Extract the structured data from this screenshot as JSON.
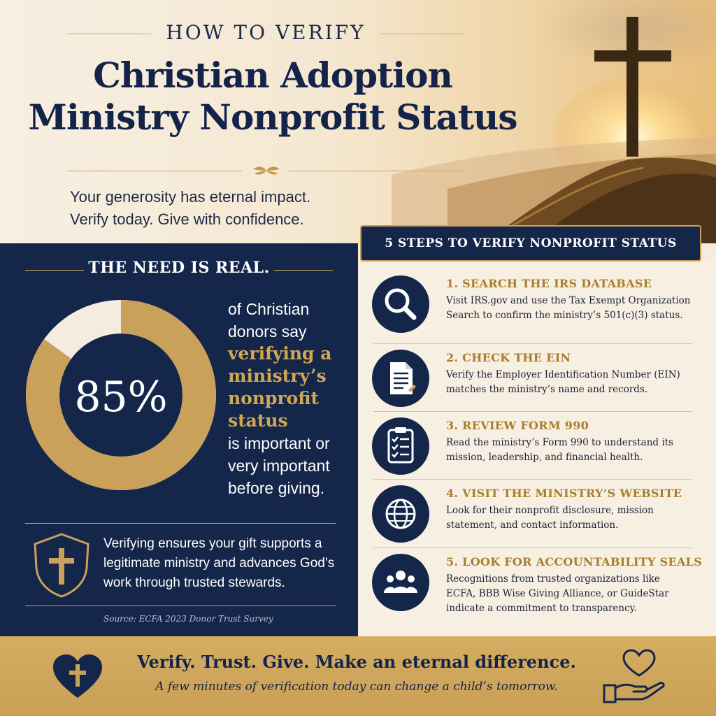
{
  "header": {
    "kicker": "HOW TO VERIFY",
    "title_line1": "Christian Adoption",
    "title_line2": "Ministry Nonprofit Status",
    "tagline_line1": "Your generosity has eternal impact.",
    "tagline_line2": "Verify today. Give with confidence."
  },
  "need": {
    "heading": "THE NEED IS REAL.",
    "stat": "85%",
    "stat_fraction": 0.85,
    "text_before": "of Christian donors say",
    "highlight_line1": "verifying a",
    "highlight_line2": "ministry’s",
    "highlight_line3": "nonprofit",
    "highlight_line4": "status",
    "text_after": "is important or very important before giving.",
    "verify_note": "Verifying ensures your gift supports a legitimate ministry and advances God’s work through trusted stewards.",
    "source": "Source: ECFA 2023 Donor Trust Survey"
  },
  "steps_panel": {
    "heading": "5 STEPS TO VERIFY NONPROFIT STATUS",
    "steps": [
      {
        "title": "1. SEARCH THE IRS DATABASE",
        "desc": "Visit IRS.gov and use the Tax Exempt Organization Search to confirm the ministry’s 501(c)(3) status.",
        "icon": "magnifier-icon"
      },
      {
        "title": "2. CHECK THE EIN",
        "desc": "Verify the Employer Identification Number (EIN) matches the ministry’s name and records.",
        "icon": "document-icon"
      },
      {
        "title": "3. REVIEW FORM 990",
        "desc": "Read the ministry’s Form 990 to understand its mission, leadership, and financial health.",
        "icon": "clipboard-checklist-icon"
      },
      {
        "title": "4. VISIT THE MINISTRY’S WEBSITE",
        "desc": "Look for their nonprofit disclosure, mission statement, and contact information.",
        "icon": "globe-icon"
      },
      {
        "title": "5. LOOK FOR ACCOUNTABILITY SEALS",
        "desc": "Recognitions from trusted organizations like ECFA, BBB Wise Giving Alliance, or GuideStar indicate a commitment to transparency.",
        "icon": "people-group-icon"
      }
    ]
  },
  "footer": {
    "headline": "Verify. Trust. Give. Make an eternal difference.",
    "subline": "A few minutes of verification today can change a child’s tomorrow."
  },
  "colors": {
    "navy": "#14264a",
    "gold": "#c9a15a",
    "cream": "#f7efe2",
    "step_title": "#a97d2a"
  }
}
